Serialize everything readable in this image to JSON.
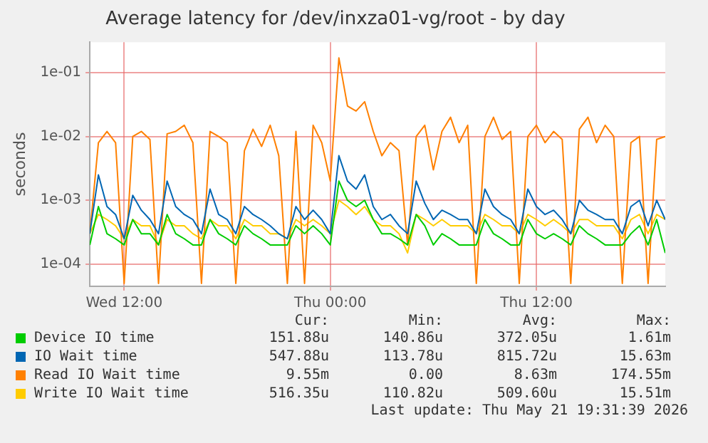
{
  "chart_data": {
    "type": "line",
    "title": "Average latency for /dev/inxza01-vg/root - by day",
    "ylabel": "seconds",
    "x": [
      "2026-05-20T10:00",
      "2026-05-20T10:30",
      "2026-05-20T11:00",
      "2026-05-20T11:30",
      "2026-05-20T12:00",
      "2026-05-20T12:30",
      "2026-05-20T13:00",
      "2026-05-20T13:30",
      "2026-05-20T14:00",
      "2026-05-20T14:30",
      "2026-05-20T15:00",
      "2026-05-20T15:30",
      "2026-05-20T16:00",
      "2026-05-20T16:30",
      "2026-05-20T17:00",
      "2026-05-20T17:30",
      "2026-05-20T18:00",
      "2026-05-20T18:30",
      "2026-05-20T19:00",
      "2026-05-20T19:30",
      "2026-05-20T20:00",
      "2026-05-20T20:30",
      "2026-05-20T21:00",
      "2026-05-20T21:30",
      "2026-05-20T22:00",
      "2026-05-20T22:30",
      "2026-05-20T23:00",
      "2026-05-20T23:30",
      "2026-05-21T00:00",
      "2026-05-21T00:30",
      "2026-05-21T01:00",
      "2026-05-21T01:30",
      "2026-05-21T02:00",
      "2026-05-21T02:30",
      "2026-05-21T03:00",
      "2026-05-21T03:30",
      "2026-05-21T04:00",
      "2026-05-21T04:30",
      "2026-05-21T05:00",
      "2026-05-21T05:30",
      "2026-05-21T06:00",
      "2026-05-21T06:30",
      "2026-05-21T07:00",
      "2026-05-21T07:30",
      "2026-05-21T08:00",
      "2026-05-21T08:30",
      "2026-05-21T09:00",
      "2026-05-21T09:30",
      "2026-05-21T10:00",
      "2026-05-21T10:30",
      "2026-05-21T11:00",
      "2026-05-21T11:30",
      "2026-05-21T12:00",
      "2026-05-21T12:30",
      "2026-05-21T13:00",
      "2026-05-21T13:30",
      "2026-05-21T14:00",
      "2026-05-21T14:30",
      "2026-05-21T15:00",
      "2026-05-21T15:30",
      "2026-05-21T16:00",
      "2026-05-21T16:30",
      "2026-05-21T17:00",
      "2026-05-21T17:30",
      "2026-05-21T18:00",
      "2026-05-21T18:30",
      "2026-05-21T19:00",
      "2026-05-21T19:30"
    ],
    "series": [
      {
        "name": "Device IO time",
        "color": "#00cc00",
        "values": [
          0.0002,
          0.0008,
          0.0003,
          0.00025,
          0.0002,
          0.0005,
          0.0003,
          0.0003,
          0.0002,
          0.0006,
          0.0003,
          0.00025,
          0.0002,
          0.0002,
          0.0005,
          0.0003,
          0.00025,
          0.0002,
          0.0004,
          0.0003,
          0.00025,
          0.0002,
          0.0002,
          0.0002,
          0.0004,
          0.0003,
          0.0004,
          0.0003,
          0.0002,
          0.002,
          0.001,
          0.0008,
          0.001,
          0.0005,
          0.0003,
          0.0003,
          0.00025,
          0.0002,
          0.0006,
          0.0004,
          0.0002,
          0.0003,
          0.00025,
          0.0002,
          0.0002,
          0.0002,
          0.0005,
          0.0003,
          0.00025,
          0.0002,
          0.0002,
          0.0005,
          0.0003,
          0.00025,
          0.0003,
          0.00025,
          0.0002,
          0.0004,
          0.0003,
          0.00025,
          0.0002,
          0.0002,
          0.0002,
          0.0003,
          0.0004,
          0.0002,
          0.0005,
          0.00015
        ]
      },
      {
        "name": "IO Wait time",
        "color": "#0066b3",
        "values": [
          0.0003,
          0.0025,
          0.0008,
          0.0006,
          0.00025,
          0.0012,
          0.0007,
          0.0005,
          0.0003,
          0.002,
          0.0008,
          0.0006,
          0.0005,
          0.0003,
          0.0015,
          0.0006,
          0.0005,
          0.0003,
          0.0008,
          0.0006,
          0.0005,
          0.0004,
          0.0003,
          0.00025,
          0.0008,
          0.0005,
          0.0007,
          0.0005,
          0.0003,
          0.005,
          0.002,
          0.0015,
          0.0025,
          0.0008,
          0.0005,
          0.0006,
          0.0004,
          0.0003,
          0.002,
          0.0009,
          0.0005,
          0.0007,
          0.0006,
          0.0005,
          0.0005,
          0.0003,
          0.0015,
          0.0008,
          0.0006,
          0.0005,
          0.0003,
          0.0015,
          0.0008,
          0.0006,
          0.0007,
          0.0005,
          0.0003,
          0.001,
          0.0007,
          0.0006,
          0.0005,
          0.0005,
          0.0003,
          0.0008,
          0.001,
          0.0004,
          0.001,
          0.0005
        ]
      },
      {
        "name": "Read IO Wait time",
        "color": "#ff8000",
        "values": [
          0.0003,
          0.008,
          0.012,
          0.008,
          5e-05,
          0.01,
          0.012,
          0.009,
          5e-05,
          0.011,
          0.012,
          0.015,
          0.008,
          5e-05,
          0.012,
          0.01,
          0.008,
          5e-05,
          0.006,
          0.013,
          0.007,
          0.015,
          0.005,
          5e-05,
          0.012,
          5e-05,
          0.015,
          0.008,
          0.002,
          0.17,
          0.03,
          0.025,
          0.035,
          0.012,
          0.005,
          0.008,
          0.006,
          0.0002,
          0.01,
          0.015,
          0.003,
          0.012,
          0.02,
          0.008,
          0.015,
          5e-05,
          0.01,
          0.02,
          0.009,
          0.012,
          5e-05,
          0.01,
          0.015,
          0.008,
          0.012,
          0.009,
          5e-05,
          0.013,
          0.02,
          0.008,
          0.015,
          0.01,
          5e-05,
          0.008,
          0.01,
          5e-05,
          0.009,
          0.01
        ]
      },
      {
        "name": "Write IO Wait time",
        "color": "#ffcc00",
        "values": [
          0.0003,
          0.0006,
          0.0005,
          0.0004,
          0.00025,
          0.0005,
          0.0004,
          0.0004,
          0.0002,
          0.0005,
          0.0004,
          0.0004,
          0.0003,
          0.00025,
          0.0005,
          0.0004,
          0.0004,
          0.00025,
          0.0005,
          0.0004,
          0.0004,
          0.0003,
          0.0003,
          0.00025,
          0.0005,
          0.0004,
          0.0005,
          0.0004,
          0.0003,
          0.001,
          0.0008,
          0.0006,
          0.0008,
          0.0005,
          0.0004,
          0.0004,
          0.0003,
          0.00015,
          0.0006,
          0.0005,
          0.0004,
          0.0005,
          0.0004,
          0.0004,
          0.0004,
          0.0003,
          0.0006,
          0.0005,
          0.0004,
          0.0004,
          0.0003,
          0.0006,
          0.0005,
          0.0004,
          0.0005,
          0.0004,
          0.0003,
          0.0005,
          0.0005,
          0.0004,
          0.0004,
          0.0004,
          0.00025,
          0.0005,
          0.0006,
          0.0003,
          0.0006,
          0.0005
        ]
      }
    ],
    "xlim": [
      "2026-05-20T10:00",
      "2026-05-21T19:30"
    ],
    "xticks": [
      {
        "value": "2026-05-20T12:00",
        "label": "Wed 12:00"
      },
      {
        "value": "2026-05-21T00:00",
        "label": "Thu 00:00"
      },
      {
        "value": "2026-05-21T12:00",
        "label": "Thu 12:00"
      }
    ],
    "ylim": [
      4.5e-05,
      0.3
    ],
    "yticks": [
      {
        "value": 0.0001,
        "label": "1e-04"
      },
      {
        "value": 0.001,
        "label": "1e-03"
      },
      {
        "value": 0.01,
        "label": "1e-02"
      },
      {
        "value": 0.1,
        "label": "1e-01"
      }
    ],
    "log": "y",
    "grid": true,
    "legend": "bottom",
    "annotations": [
      "Cur:",
      "Min:",
      "Avg:",
      "Max:",
      "151.88u",
      "140.86u",
      "372.05u",
      "1.61m",
      "547.88u",
      "113.78u",
      "815.72u",
      "15.63m",
      "9.55m",
      "0.00",
      "8.63m",
      "174.55m",
      "516.35u",
      "110.82u",
      "509.60u",
      "15.51m",
      "Last update: Thu May 21 19:31:39 2026"
    ]
  }
}
